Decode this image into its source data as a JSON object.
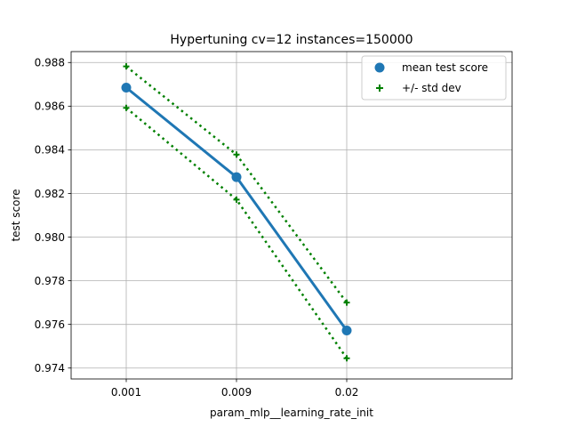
{
  "chart_data": {
    "type": "line",
    "title": "Hypertuning cv=12 instances=150000",
    "xlabel": "param_mlp__learning_rate_init",
    "ylabel": "test score",
    "categories": [
      "0.001",
      "0.009",
      "0.02"
    ],
    "ylim": [
      0.9735,
      0.9885
    ],
    "yticks": [
      0.974,
      0.976,
      0.978,
      0.98,
      0.982,
      0.984,
      0.986,
      0.988
    ],
    "ytick_labels": [
      "0.974",
      "0.976",
      "0.978",
      "0.980",
      "0.982",
      "0.984",
      "0.986",
      "0.988"
    ],
    "grid": true,
    "legend_position": "top-right",
    "series": [
      {
        "name": "mean test score",
        "values": [
          0.98685,
          0.98275,
          0.97572
        ],
        "color": "#1f77b4",
        "style": "solid line with circle markers"
      },
      {
        "name": "+/- std dev",
        "upper": [
          0.98782,
          0.98378,
          0.977
        ],
        "lower": [
          0.98592,
          0.98172,
          0.97445
        ],
        "color": "#008000",
        "style": "dotted lines with plus markers"
      }
    ]
  }
}
